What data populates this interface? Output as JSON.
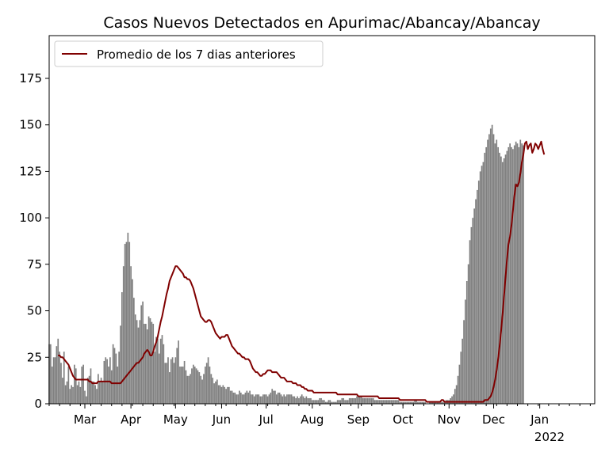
{
  "chart_data": {
    "type": "bar",
    "title": "Casos Nuevos Detectados en Apurimac/Abancay/Abancay",
    "xlabel": "",
    "ylabel": "",
    "x_start": "2021-02-05",
    "x_end": "2022-02-07",
    "ylim": [
      0,
      198
    ],
    "y_ticks": [
      0,
      25,
      50,
      75,
      100,
      125,
      150,
      175
    ],
    "x_ticks": [
      {
        "date": "2021-03-01",
        "label": "Mar"
      },
      {
        "date": "2021-04-01",
        "label": "Apr"
      },
      {
        "date": "2021-05-01",
        "label": "May"
      },
      {
        "date": "2021-06-01",
        "label": "Jun"
      },
      {
        "date": "2021-07-01",
        "label": "Jul"
      },
      {
        "date": "2021-08-01",
        "label": "Aug"
      },
      {
        "date": "2021-09-01",
        "label": "Sep"
      },
      {
        "date": "2021-10-01",
        "label": "Oct"
      },
      {
        "date": "2021-11-01",
        "label": "Nov"
      },
      {
        "date": "2021-12-01",
        "label": "Dec"
      },
      {
        "date": "2022-01-01",
        "label": "Jan"
      }
    ],
    "year_label": "2022",
    "grid": false,
    "legend_position": "top-left",
    "series": [
      {
        "name": "",
        "kind": "bar",
        "color": "#808080",
        "start_date": "2021-02-05",
        "values": [
          32,
          32,
          20,
          25,
          25,
          31,
          35,
          28,
          22,
          14,
          28,
          10,
          12,
          20,
          8,
          10,
          9,
          21,
          19,
          10,
          12,
          9,
          20,
          21,
          7,
          4,
          14,
          15,
          19,
          12,
          12,
          10,
          8,
          16,
          12,
          14,
          12,
          23,
          25,
          24,
          20,
          25,
          18,
          32,
          30,
          27,
          20,
          28,
          42,
          60,
          74,
          86,
          87,
          92,
          87,
          74,
          67,
          57,
          48,
          45,
          41,
          45,
          53,
          55,
          43,
          43,
          40,
          47,
          46,
          44,
          43,
          28,
          36,
          35,
          27,
          35,
          37,
          32,
          22,
          22,
          25,
          17,
          24,
          25,
          22,
          25,
          30,
          34,
          20,
          20,
          20,
          23,
          18,
          15,
          15,
          16,
          19,
          21,
          20,
          19,
          18,
          17,
          15,
          13,
          16,
          20,
          22,
          25,
          20,
          16,
          14,
          11,
          12,
          13,
          10,
          10,
          9,
          10,
          9,
          8,
          9,
          9,
          7,
          7,
          6,
          6,
          5,
          5,
          7,
          6,
          5,
          5,
          6,
          7,
          6,
          7,
          5,
          5,
          4,
          5,
          5,
          5,
          4,
          4,
          5,
          5,
          5,
          4,
          5,
          6,
          8,
          7,
          7,
          5,
          6,
          6,
          5,
          4,
          5,
          4,
          5,
          5,
          5,
          5,
          4,
          4,
          3,
          4,
          3,
          4,
          5,
          4,
          3,
          4,
          3,
          3,
          3,
          2,
          2,
          2,
          2,
          2,
          3,
          3,
          2,
          2,
          1,
          1,
          2,
          2,
          1,
          1,
          1,
          1,
          2,
          2,
          2,
          3,
          3,
          2,
          2,
          2,
          3,
          3,
          3,
          3,
          3,
          4,
          4,
          4,
          4,
          3,
          3,
          3,
          3,
          3,
          3,
          3,
          3,
          2,
          2,
          2,
          2,
          2,
          2,
          2,
          2,
          2,
          2,
          2,
          2,
          2,
          2,
          2,
          2,
          2,
          1,
          1,
          1,
          1,
          1,
          1,
          1,
          1,
          1,
          1,
          2,
          2,
          1,
          1,
          1,
          1,
          1,
          1,
          0,
          0,
          1,
          1,
          1,
          1,
          1,
          1,
          1,
          1,
          1,
          1,
          1,
          2,
          2,
          2,
          3,
          4,
          5,
          8,
          10,
          15,
          21,
          28,
          35,
          45,
          56,
          66,
          75,
          88,
          95,
          100,
          105,
          110,
          115,
          120,
          125,
          128,
          130,
          135,
          138,
          142,
          145,
          148,
          150,
          145,
          140,
          142,
          138,
          135,
          133,
          130,
          132,
          134,
          136,
          138,
          140,
          138,
          137,
          139,
          141,
          140,
          138,
          142,
          140,
          139
        ]
      },
      {
        "name": "Promedio de los 7 dias anteriores",
        "kind": "line",
        "color": "#800000",
        "start_date": "2021-02-11",
        "values": [
          26,
          26,
          25,
          25,
          24,
          23,
          22,
          21,
          19,
          17,
          15,
          14,
          13,
          13,
          13,
          13,
          13,
          13,
          13,
          13,
          13,
          12,
          12,
          11,
          11,
          11,
          11,
          12,
          12,
          12,
          12,
          12,
          12,
          12,
          12,
          12,
          11,
          11,
          11,
          11,
          11,
          11,
          11,
          12,
          13,
          14,
          15,
          16,
          17,
          18,
          19,
          20,
          21,
          22,
          22,
          23,
          24,
          25,
          27,
          28,
          29,
          28,
          26,
          26,
          28,
          31,
          33,
          36,
          40,
          44,
          47,
          51,
          55,
          59,
          62,
          66,
          68,
          70,
          72,
          74,
          74,
          73,
          72,
          71,
          70,
          68,
          68,
          67,
          67,
          66,
          64,
          62,
          59,
          56,
          53,
          50,
          47,
          46,
          45,
          44,
          44,
          45,
          45,
          44,
          42,
          40,
          38,
          37,
          36,
          35,
          36,
          36,
          36,
          37,
          37,
          35,
          33,
          31,
          30,
          29,
          28,
          27,
          27,
          26,
          25,
          25,
          24,
          24,
          24,
          23,
          21,
          19,
          18,
          17,
          17,
          16,
          15,
          15,
          16,
          16,
          17,
          18,
          18,
          18,
          17,
          17,
          17,
          17,
          16,
          15,
          14,
          14,
          14,
          13,
          12,
          12,
          12,
          12,
          11,
          11,
          11,
          10,
          10,
          10,
          9,
          9,
          8,
          8,
          7,
          7,
          7,
          7,
          6,
          6,
          6,
          6,
          6,
          6,
          6,
          6,
          6,
          6,
          6,
          6,
          6,
          6,
          6,
          6,
          5,
          5,
          5,
          5,
          5,
          5,
          5,
          5,
          5,
          5,
          5,
          5,
          5,
          5,
          4,
          4,
          4,
          4,
          4,
          4,
          4,
          4,
          4,
          4,
          4,
          4,
          4,
          4,
          3,
          3,
          3,
          3,
          3,
          3,
          3,
          3,
          3,
          3,
          3,
          3,
          3,
          3,
          2,
          2,
          2,
          2,
          2,
          2,
          2,
          2,
          2,
          2,
          2,
          2,
          2,
          2,
          2,
          2,
          2,
          2,
          1,
          1,
          1,
          1,
          1,
          1,
          1,
          1,
          1,
          1,
          2,
          2,
          1,
          1,
          1,
          1,
          1,
          1,
          1,
          1,
          1,
          1,
          1,
          1,
          1,
          1,
          1,
          1,
          1,
          1,
          1,
          1,
          1,
          1,
          1,
          1,
          1,
          1,
          1,
          2,
          2,
          2,
          3,
          4,
          6,
          9,
          13,
          18,
          24,
          31,
          39,
          48,
          58,
          68,
          78,
          86,
          90,
          96,
          104,
          112,
          118,
          117,
          119,
          124,
          130,
          134,
          140,
          141,
          137,
          139,
          140,
          135,
          137,
          140,
          139,
          137,
          139,
          141,
          137,
          134
        ]
      }
    ]
  }
}
